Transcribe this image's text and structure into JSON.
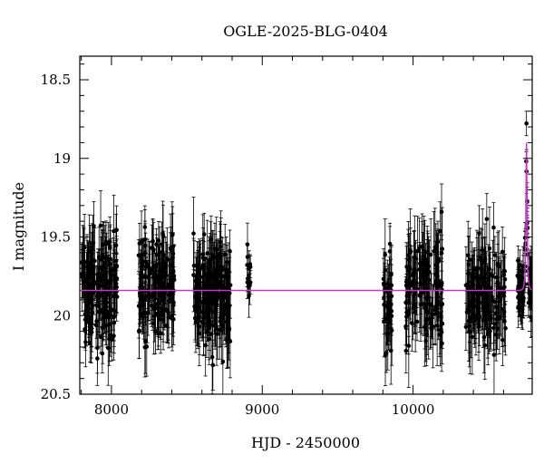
{
  "chart_data": {
    "type": "scatter",
    "title": "OGLE-2025-BLG-0404",
    "xlabel": "HJD - 2450000",
    "ylabel": "I magnitude",
    "xlim": [
      7790,
      10790
    ],
    "ylim": [
      20.5,
      18.35
    ],
    "y_inverted": true,
    "xticks": [
      8000,
      9000,
      10000
    ],
    "xtick_labels": [
      "8000",
      "9000",
      "10000"
    ],
    "yticks": [
      18.5,
      19,
      19.5,
      20,
      20.5
    ],
    "ytick_labels": [
      "18.5",
      "19",
      "19.5",
      "20",
      "20.5"
    ],
    "grid": false,
    "legend": false,
    "colors": {
      "points": "#000000",
      "model": "#cc33cc",
      "model_peak": "#7a2a7a"
    },
    "model": {
      "name": "",
      "baseline_mag": 19.84,
      "peak_time": 10752,
      "peak_mag": 18.9,
      "tE_days": 8
    },
    "series": [
      {
        "name": "",
        "seasons": [
          {
            "start": 7800,
            "end": 8040,
            "n": 170,
            "mean_mag": 19.84,
            "scatter": 0.17,
            "err": 0.17
          },
          {
            "start": 8180,
            "end": 8420,
            "n": 170,
            "mean_mag": 19.8,
            "scatter": 0.15,
            "err": 0.16
          },
          {
            "start": 8540,
            "end": 8790,
            "n": 190,
            "mean_mag": 19.84,
            "scatter": 0.17,
            "err": 0.18
          },
          {
            "start": 8900,
            "end": 8925,
            "n": 12,
            "mean_mag": 19.72,
            "scatter": 0.12,
            "err": 0.1
          },
          {
            "start": 9800,
            "end": 9860,
            "n": 40,
            "mean_mag": 19.9,
            "scatter": 0.17,
            "err": 0.18
          },
          {
            "start": 9950,
            "end": 10200,
            "n": 140,
            "mean_mag": 19.84,
            "scatter": 0.18,
            "err": 0.19
          },
          {
            "start": 10350,
            "end": 10620,
            "n": 140,
            "mean_mag": 19.88,
            "scatter": 0.18,
            "err": 0.19
          },
          {
            "start": 10690,
            "end": 10790,
            "n": 80,
            "mean_mag": 19.84,
            "scatter": 0.08,
            "err": 0.1
          }
        ]
      }
    ]
  }
}
